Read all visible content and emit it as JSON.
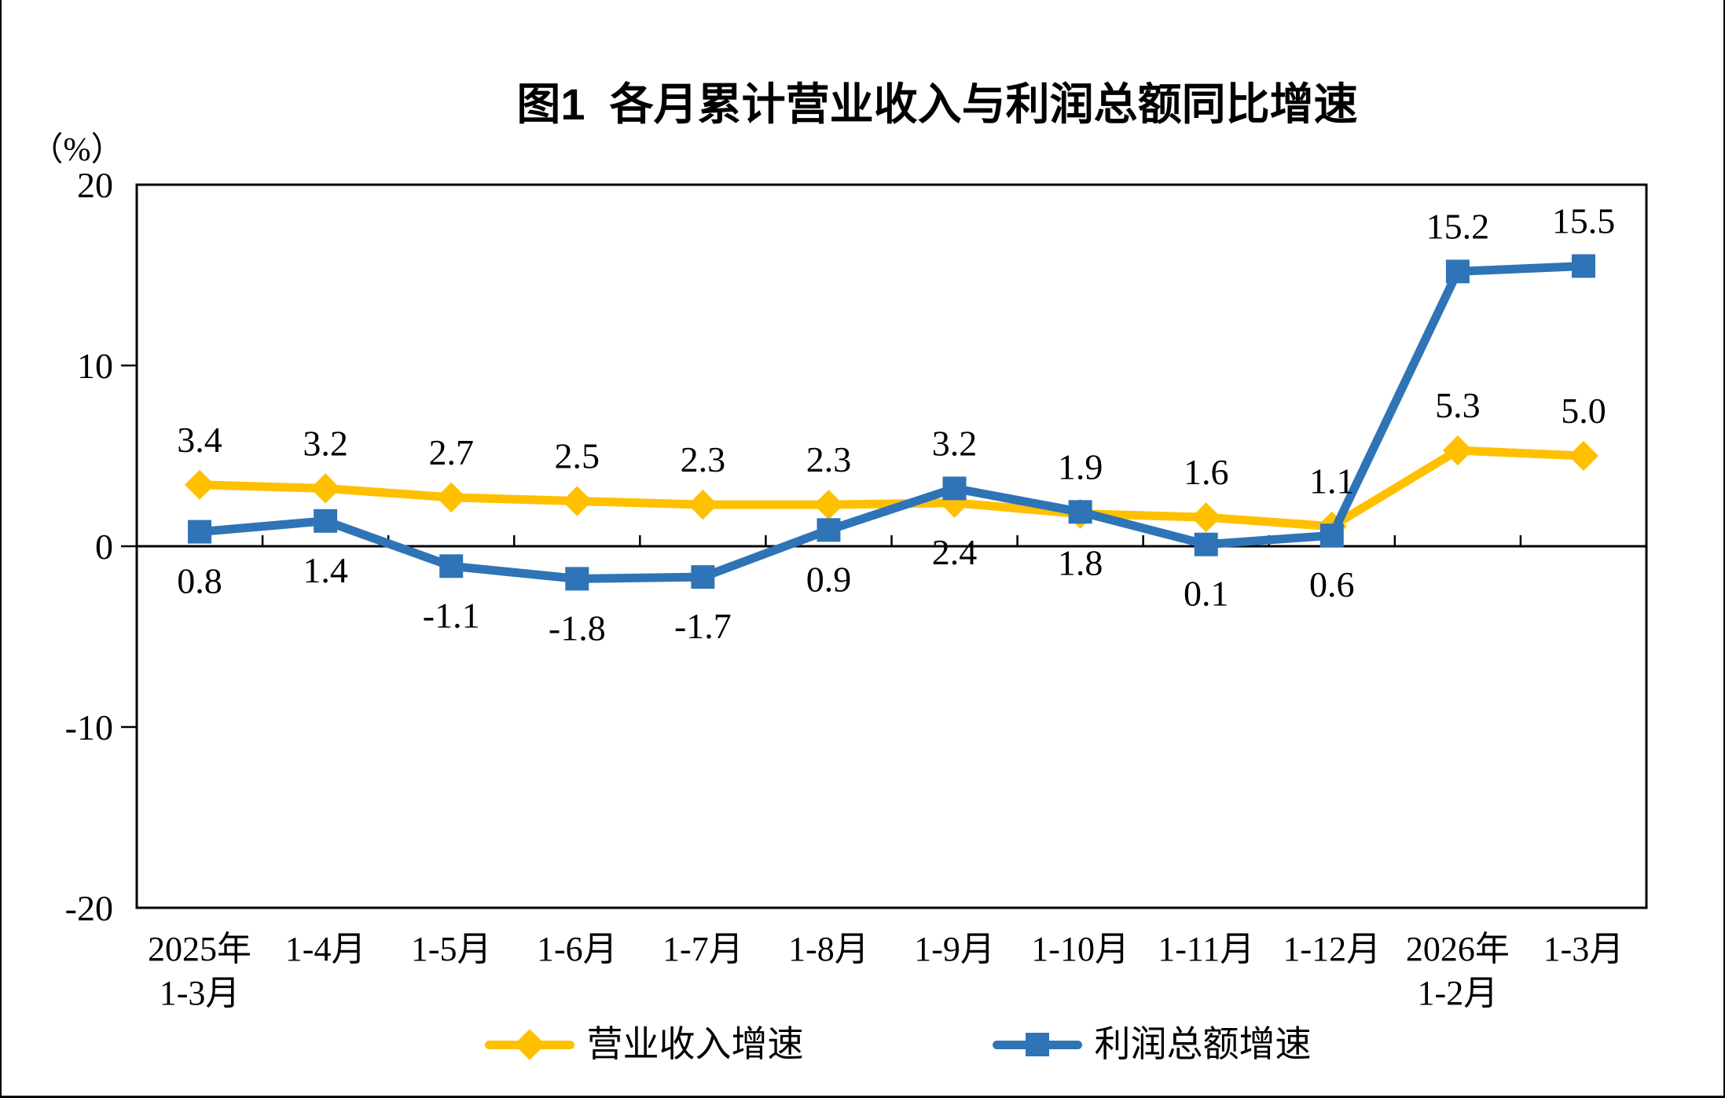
{
  "chart_data": {
    "type": "line",
    "title": "图1  各月累计营业收入与利润总额同比增速",
    "unit_label": "（%）",
    "categories": [
      "2025年\n1-3月",
      "1-4月",
      "1-5月",
      "1-6月",
      "1-7月",
      "1-8月",
      "1-9月",
      "1-10月",
      "1-11月",
      "1-12月",
      "2026年\n1-2月",
      "1-3月"
    ],
    "ylim": [
      -20,
      20
    ],
    "yticks": [
      20,
      10,
      0,
      -10,
      -20
    ],
    "grid": false,
    "legend_position": "bottom",
    "axis_color": "#000000",
    "series": [
      {
        "name": "营业收入增速",
        "color": "#FFC000",
        "marker": "diamond",
        "values": [
          3.4,
          3.2,
          2.7,
          2.5,
          2.3,
          2.3,
          2.4,
          1.8,
          1.6,
          1.1,
          5.3,
          5.0
        ],
        "label_pos": [
          "above",
          "above",
          "above",
          "above",
          "above",
          "above",
          "below",
          "below",
          "above",
          "above",
          "above",
          "above"
        ]
      },
      {
        "name": "利润总额增速",
        "color": "#2E74B6",
        "marker": "square",
        "values": [
          0.8,
          1.4,
          -1.1,
          -1.8,
          -1.7,
          0.9,
          3.2,
          1.9,
          0.1,
          0.6,
          15.2,
          15.5
        ],
        "label_pos": [
          "below",
          "below",
          "below",
          "below",
          "below",
          "below",
          "above",
          "above",
          "below",
          "below",
          "above",
          "above"
        ]
      }
    ]
  }
}
